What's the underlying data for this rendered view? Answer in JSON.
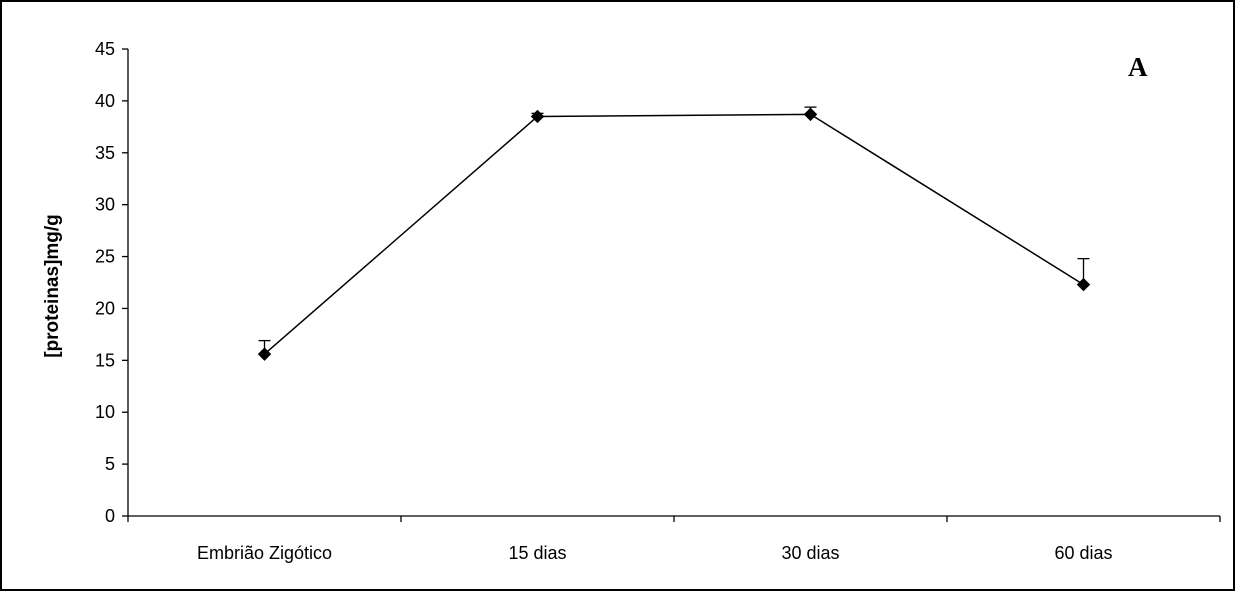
{
  "chart_data": {
    "type": "line",
    "title": "",
    "panel_label": "A",
    "xlabel": "",
    "ylabel": "[proteinas]mg/g",
    "categories": [
      "Embrião Zigótico",
      "15 dias",
      "30 dias",
      "60 dias"
    ],
    "series": [
      {
        "values": [
          15.6,
          38.5,
          38.7,
          22.3
        ],
        "error_plus": [
          1.3,
          0.3,
          0.7,
          2.5
        ],
        "color": "#000000",
        "marker": "diamond"
      }
    ],
    "ylim": [
      0,
      45
    ],
    "yticks": [
      0,
      5,
      10,
      15,
      20,
      25,
      30,
      35,
      40,
      45
    ],
    "grid": false,
    "legend": "none"
  }
}
